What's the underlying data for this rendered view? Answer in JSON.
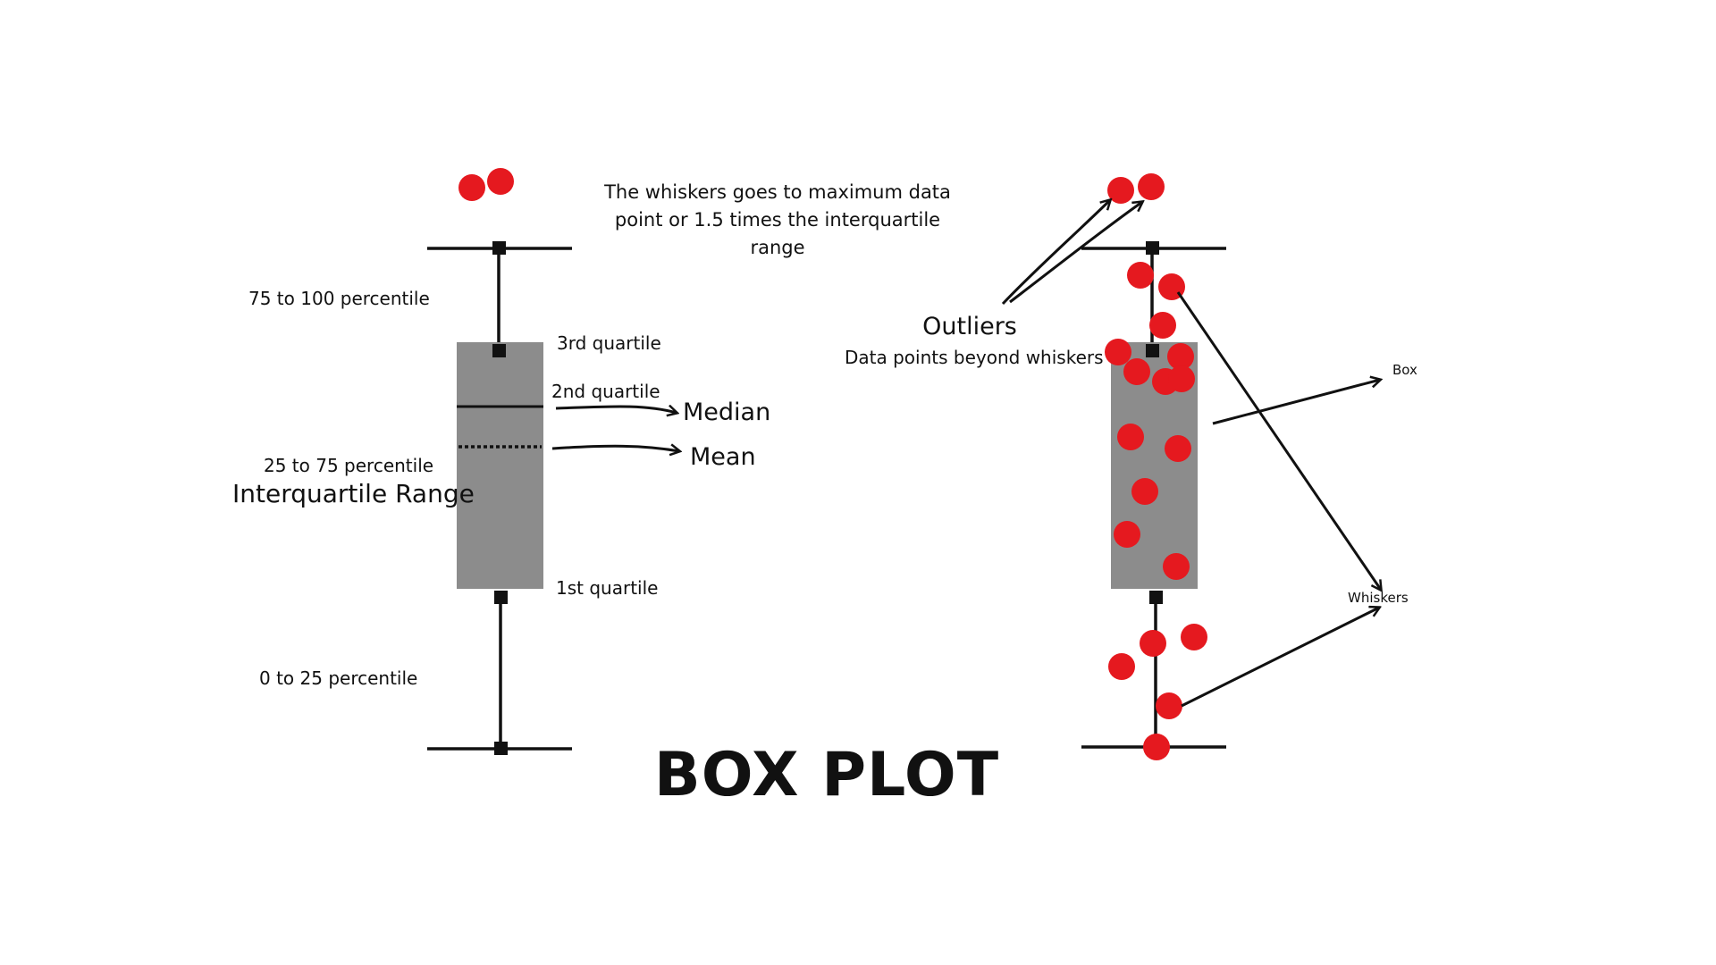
{
  "title": "BOX PLOT",
  "colors": {
    "box_fill": "#8c8c8c",
    "line": "#111111",
    "point": "#e5191f",
    "background": "#ffffff"
  },
  "left_plot": {
    "labels": {
      "upper_range": "75 to 100 percentile",
      "iqr_range": "25 to 75 percentile",
      "iqr_title": "Interquartile Range",
      "lower_range": "0 to 25 percentile",
      "q3": "3rd quartile",
      "q2": "2nd quartile",
      "q1": "1st quartile",
      "median": "Median",
      "mean": "Mean"
    },
    "outlier_count": 2
  },
  "annotation": {
    "whisker_note": "The whiskers goes to maximum data point or 1.5 times the interquartile range"
  },
  "right_plot": {
    "labels": {
      "outliers": "Outliers",
      "outliers_desc": "Data points beyond whiskers",
      "box": "Box",
      "whiskers": "Whiskers"
    },
    "point_count": 22
  }
}
